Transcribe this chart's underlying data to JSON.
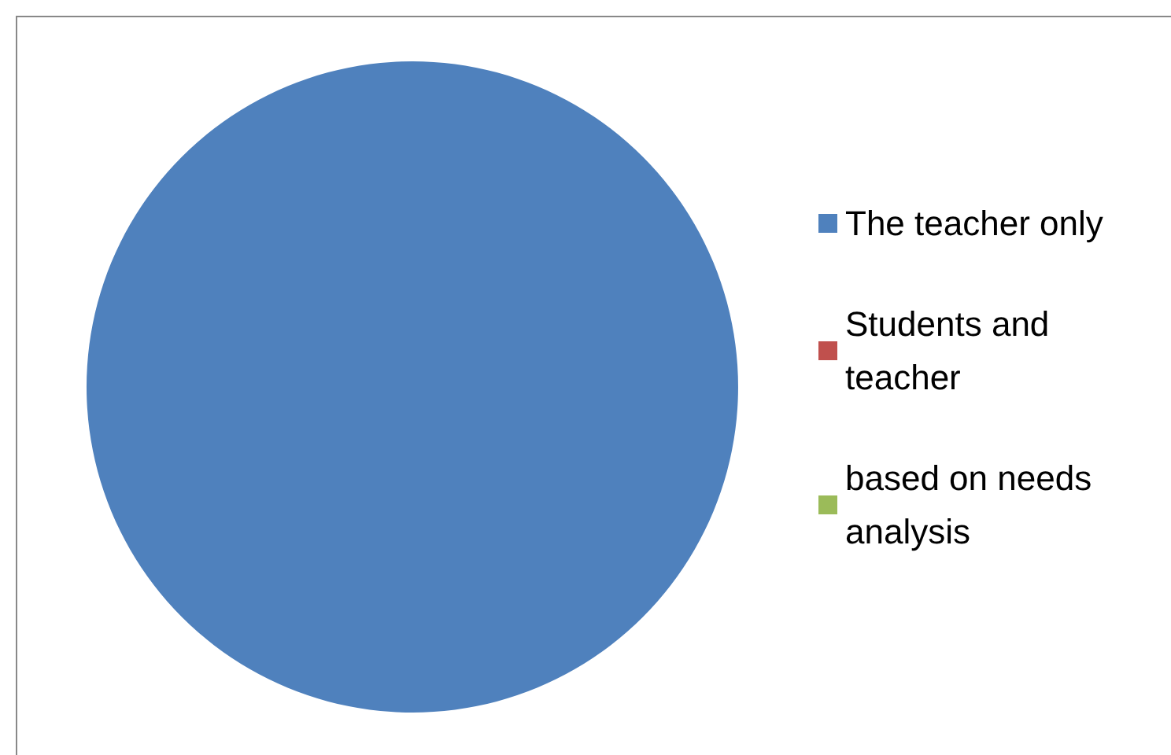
{
  "chart_data": {
    "type": "pie",
    "categories": [
      "The teacher only",
      "Students and teacher",
      "based on needs analysis"
    ],
    "values": [
      100,
      0,
      0
    ],
    "colors": [
      "#4f81bd",
      "#c0504d",
      "#9bbb59"
    ],
    "legend": "right"
  }
}
